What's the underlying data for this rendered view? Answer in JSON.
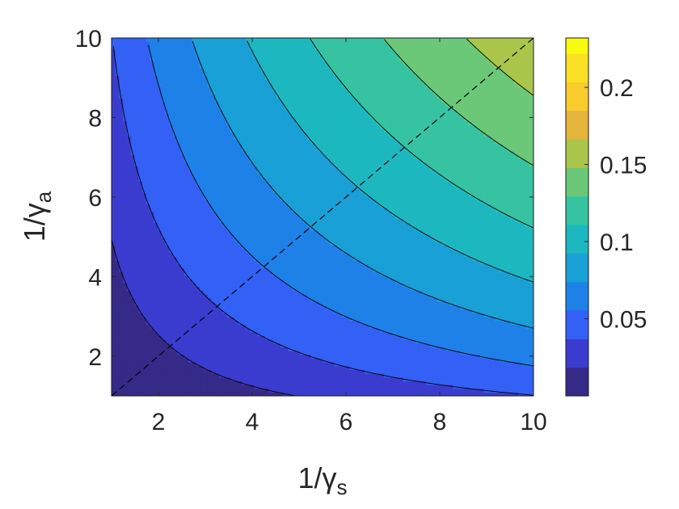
{
  "chart_data": {
    "type": "heatmap",
    "subtype": "filled-contour",
    "title": "",
    "xlabel": {
      "main": "1/γ",
      "subscript": "s"
    },
    "ylabel": {
      "main": "1/γ",
      "subscript": "a"
    },
    "xlim": [
      1,
      10
    ],
    "ylim": [
      1,
      10
    ],
    "x_ticks": [
      2,
      4,
      6,
      8,
      10
    ],
    "y_ticks": [
      2,
      4,
      6,
      8,
      10
    ],
    "x_tick_labels": [
      "2",
      "4",
      "6",
      "8",
      "10"
    ],
    "y_tick_labels": [
      "2",
      "4",
      "6",
      "8",
      "10"
    ],
    "colorbar": {
      "range": [
        0.0,
        0.232
      ],
      "ticks": [
        0.05,
        0.1,
        0.15,
        0.2
      ],
      "tick_labels": [
        "0.05",
        "0.1",
        "0.15",
        "0.2"
      ],
      "colormap": "parula"
    },
    "contour_levels": [
      0.0185,
      0.037,
      0.0555,
      0.074,
      0.0925,
      0.111,
      0.1295,
      0.148,
      0.1665,
      0.185,
      0.2035,
      0.222
    ],
    "band_colors": [
      "#352a87",
      "#3a3ccf",
      "#3360f5",
      "#1e81e8",
      "#19a0d6",
      "#1db8bf",
      "#36c3a2",
      "#6ac878",
      "#aac64a",
      "#e4b53a",
      "#f8cc2d",
      "#f9e025",
      "#f9fb0e"
    ],
    "surface_model": "z = 0.0185 * (sqrt(x*y)*(1 + 0.03*((x-y)/(x+y))^2) - 1.25)",
    "reference_line": {
      "style": "dashed",
      "from": [
        1,
        1
      ],
      "to": [
        10,
        10
      ]
    }
  }
}
